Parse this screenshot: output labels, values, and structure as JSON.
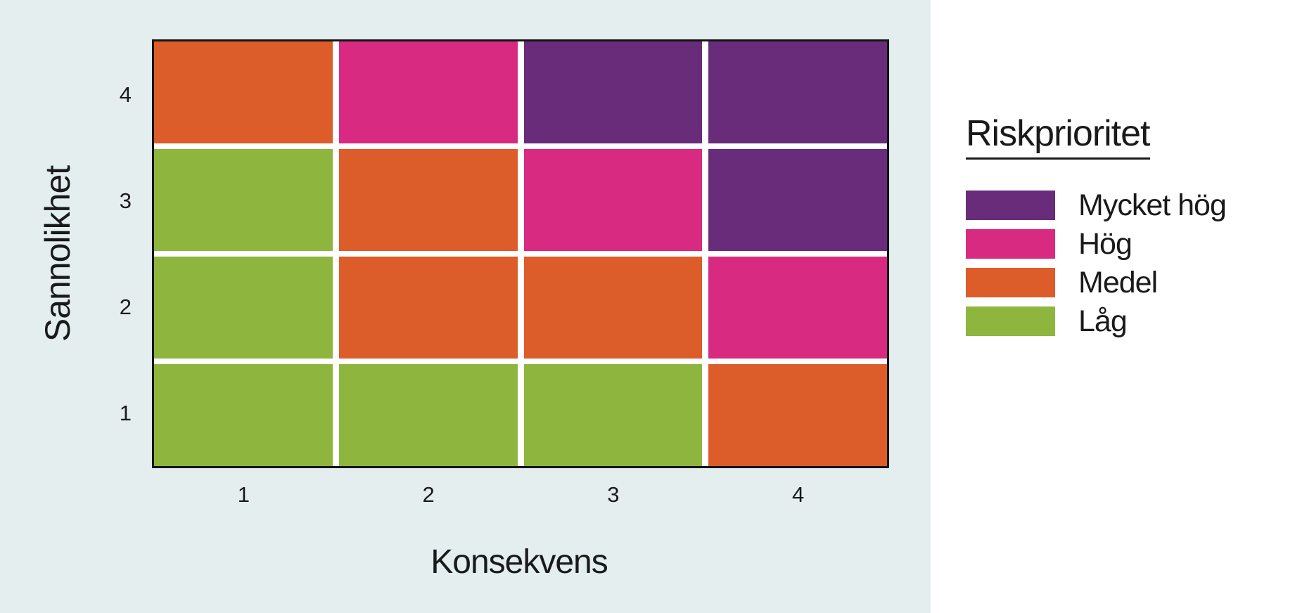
{
  "chart_data": {
    "type": "heatmap",
    "xlabel": "Konsekvens",
    "ylabel": "Sannolikhet",
    "x_ticks": [
      "1",
      "2",
      "3",
      "4"
    ],
    "y_ticks": [
      "4",
      "3",
      "2",
      "1"
    ],
    "x_range": [
      1,
      4
    ],
    "y_range": [
      1,
      4
    ],
    "grid": "white gaps between cells, black frame around plot",
    "matrix_rows_top_to_bottom": [
      [
        "medel",
        "hog",
        "mycket_hog",
        "mycket_hog"
      ],
      [
        "lag",
        "medel",
        "hog",
        "mycket_hog"
      ],
      [
        "lag",
        "medel",
        "medel",
        "hog"
      ],
      [
        "lag",
        "lag",
        "lag",
        "medel"
      ]
    ],
    "level_labels": {
      "mycket_hog": "Mycket hög",
      "hog": "Hög",
      "medel": "Medel",
      "lag": "Låg"
    },
    "colors": {
      "mycket_hog": "#692C7B",
      "hog": "#D82A80",
      "medel": "#DC5C2A",
      "lag": "#8EB63E"
    },
    "legend": {
      "title": "Riskprioritet",
      "position": "right",
      "entries": [
        {
          "key": "mycket_hog",
          "label": "Mycket hög",
          "color": "#692C7B"
        },
        {
          "key": "hog",
          "label": "Hög",
          "color": "#D82A80"
        },
        {
          "key": "medel",
          "label": "Medel",
          "color": "#DC5C2A"
        },
        {
          "key": "lag",
          "label": "Låg",
          "color": "#8EB63E"
        }
      ]
    },
    "background_color": "#E4EEEE",
    "frame_color": "#141414",
    "text_color": "#1a1a1a"
  }
}
